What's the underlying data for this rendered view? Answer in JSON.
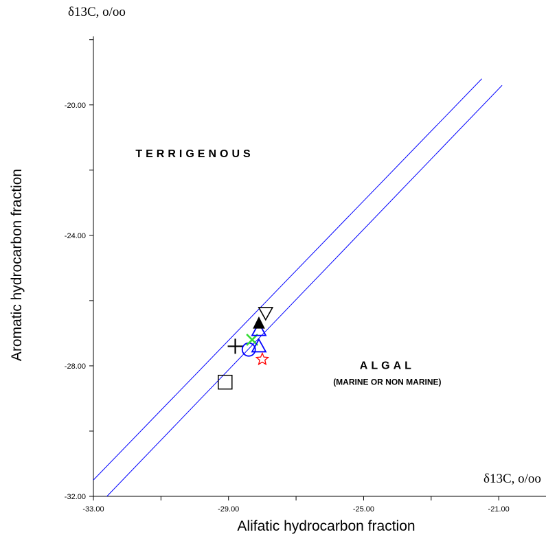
{
  "chart_data": {
    "type": "scatter",
    "xlabel": "Alifatic hydrocarbon fraction",
    "ylabel": "Aromatic hydrocarbon fraction",
    "x_unit": "δ13C, o/oo",
    "y_unit": "δ13C, o/oo",
    "xlim": [
      -33.0,
      -19.6
    ],
    "ylim": [
      -32.0,
      -17.9
    ],
    "x_ticks": [
      -33.0,
      -31.0,
      -29.0,
      -27.0,
      -25.0,
      -23.0,
      -21.0,
      -19.0
    ],
    "x_tick_labels": [
      "-33.00",
      "",
      "-29.00",
      "",
      "-25.00",
      "",
      "-21.00",
      ""
    ],
    "y_ticks": [
      -32.0,
      -30.0,
      -28.0,
      -26.0,
      -24.0,
      -22.0,
      -20.0,
      -18.0
    ],
    "y_tick_labels": [
      "-32.00",
      "",
      "-28.00",
      "",
      "-24.00",
      "",
      "-20.00",
      ""
    ],
    "grid": false,
    "boundary_lines": [
      {
        "color": "#0000ff",
        "points": [
          [
            -33.0,
            -31.5
          ],
          [
            -21.5,
            -19.2
          ]
        ]
      },
      {
        "color": "#0000ff",
        "points": [
          [
            -32.6,
            -32.0
          ],
          [
            -20.9,
            -19.4
          ]
        ]
      }
    ],
    "regions": [
      {
        "label": "TERRIGENOUS",
        "sublabel": "",
        "x": -30.0,
        "y": -21.6
      },
      {
        "label": "ALGAL",
        "sublabel": "(MARINE OR NON MARINE)",
        "x": -24.3,
        "y": -28.1
      }
    ],
    "points": [
      {
        "marker": "square",
        "color": "#000000",
        "x": -29.1,
        "y": -28.5
      },
      {
        "marker": "plus",
        "color": "#000000",
        "x": -28.8,
        "y": -27.4
      },
      {
        "marker": "circle",
        "color": "#0000ff",
        "x": -28.4,
        "y": -27.5
      },
      {
        "marker": "cross",
        "color": "#33dd33",
        "x": -28.3,
        "y": -27.2
      },
      {
        "marker": "triangle",
        "color": "#0000ff",
        "x": -28.1,
        "y": -27.4
      },
      {
        "marker": "triangle",
        "color": "#0000ff",
        "x": -28.1,
        "y": -26.9
      },
      {
        "marker": "triangle-filled",
        "color": "#000000",
        "x": -28.1,
        "y": -26.7
      },
      {
        "marker": "triangle-down",
        "color": "#000000",
        "x": -27.9,
        "y": -26.4
      },
      {
        "marker": "star",
        "color": "#ff0000",
        "x": -28.0,
        "y": -27.8
      }
    ]
  }
}
